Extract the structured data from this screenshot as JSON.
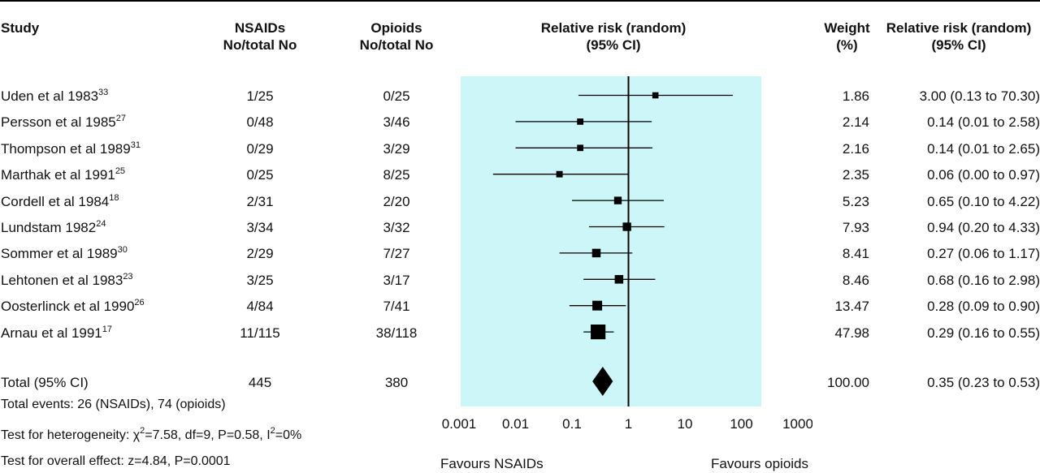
{
  "headers": {
    "study": "Study",
    "nsaid_1": "NSAIDs",
    "nsaid_2": "No/total No",
    "opioid_1": "Opioids",
    "opioid_2": "No/total No",
    "rr_1": "Relative risk (random)",
    "rr_2": "(95% CI)",
    "weight_1": "Weight",
    "weight_2": "(%)",
    "rrtext_1": "Relative risk (random)",
    "rrtext_2": "(95% CI)"
  },
  "studies": [
    {
      "name": "Uden et al 1983",
      "ref": "33",
      "nsaid": "1/25",
      "opioid": "0/25",
      "weight": "1.86",
      "rr_text": "3.00 (0.13 to 70.30)"
    },
    {
      "name": "Persson et al 1985",
      "ref": "27",
      "nsaid": "0/48",
      "opioid": "3/46",
      "weight": "2.14",
      "rr_text": "0.14 (0.01 to 2.58)"
    },
    {
      "name": "Thompson et al 1989",
      "ref": "31",
      "nsaid": "0/29",
      "opioid": "3/29",
      "weight": "2.16",
      "rr_text": "0.14 (0.01 to 2.65)"
    },
    {
      "name": "Marthak et al 1991",
      "ref": "25",
      "nsaid": "0/25",
      "opioid": "8/25",
      "weight": "2.35",
      "rr_text": "0.06 (0.00 to 0.97)"
    },
    {
      "name": "Cordell et al 1984",
      "ref": "18",
      "nsaid": "2/31",
      "opioid": "2/20",
      "weight": "5.23",
      "rr_text": "0.65 (0.10 to 4.22)"
    },
    {
      "name": "Lundstam 1982",
      "ref": "24",
      "nsaid": "3/34",
      "opioid": "3/32",
      "weight": "7.93",
      "rr_text": "0.94 (0.20 to 4.33)"
    },
    {
      "name": "Sommer et al 1989",
      "ref": "30",
      "nsaid": "2/29",
      "opioid": "7/27",
      "weight": "8.41",
      "rr_text": "0.27 (0.06 to 1.17)"
    },
    {
      "name": "Lehtonen et al 1983",
      "ref": "23",
      "nsaid": "3/25",
      "opioid": "3/17",
      "weight": "8.46",
      "rr_text": "0.68 (0.16 to 2.98)"
    },
    {
      "name": "Oosterlinck et al 1990",
      "ref": "26",
      "nsaid": "4/84",
      "opioid": "7/41",
      "weight": "13.47",
      "rr_text": "0.28 (0.09 to 0.90)"
    },
    {
      "name": "Arnau et al 1991",
      "ref": "17",
      "nsaid": "11/115",
      "opioid": "38/118",
      "weight": "47.98",
      "rr_text": "0.29 (0.16 to 0.55)"
    }
  ],
  "total": {
    "name": "Total (95% CI)",
    "nsaid": "445",
    "opioid": "380",
    "weight": "100.00",
    "rr_text": "0.35 (0.23 to 0.53)"
  },
  "notes": {
    "events": "Total events: 26 (NSAIDs), 74 (opioids)",
    "heterogeneity_pre": "Test for heterogeneity: ",
    "chi": "χ",
    "chi_sup": "2",
    "heterogeneity_mid": "=7.58, df=9, P=0.58, I",
    "i_sup": "2",
    "heterogeneity_post": "=0%",
    "overall": "Test for overall effect: z=4.84, P=0.0001"
  },
  "axis": {
    "favours_left": "Favours NSAIDs",
    "favours_right": "Favours opioids"
  },
  "colors": {
    "plot_bg": "#ccf6f8",
    "marker": "#000000"
  },
  "chart_data": {
    "type": "forest",
    "xscale": "log",
    "xlim": [
      0.001,
      1000
    ],
    "xticks": [
      0.001,
      0.01,
      0.1,
      1,
      10,
      100,
      1000
    ],
    "xtick_labels": [
      "0.001",
      "0.01",
      "0.1",
      "1",
      "10",
      "100",
      "1000"
    ],
    "reference_line": 1,
    "series": [
      {
        "study": "Uden et al 1983",
        "rr": 3.0,
        "lo": 0.13,
        "hi": 70.3,
        "weight": 1.86
      },
      {
        "study": "Persson et al 1985",
        "rr": 0.14,
        "lo": 0.01,
        "hi": 2.58,
        "weight": 2.14
      },
      {
        "study": "Thompson et al 1989",
        "rr": 0.14,
        "lo": 0.01,
        "hi": 2.65,
        "weight": 2.16
      },
      {
        "study": "Marthak et al 1991",
        "rr": 0.06,
        "lo": 0.004,
        "hi": 0.97,
        "weight": 2.35
      },
      {
        "study": "Cordell et al 1984",
        "rr": 0.65,
        "lo": 0.1,
        "hi": 4.22,
        "weight": 5.23
      },
      {
        "study": "Lundstam 1982",
        "rr": 0.94,
        "lo": 0.2,
        "hi": 4.33,
        "weight": 7.93
      },
      {
        "study": "Sommer et al 1989",
        "rr": 0.27,
        "lo": 0.06,
        "hi": 1.17,
        "weight": 8.41
      },
      {
        "study": "Lehtonen et al 1983",
        "rr": 0.68,
        "lo": 0.16,
        "hi": 2.98,
        "weight": 8.46
      },
      {
        "study": "Oosterlinck et al 1990",
        "rr": 0.28,
        "lo": 0.09,
        "hi": 0.9,
        "weight": 13.47
      },
      {
        "study": "Arnau et al 1991",
        "rr": 0.29,
        "lo": 0.16,
        "hi": 0.55,
        "weight": 47.98
      }
    ],
    "pooled": {
      "rr": 0.35,
      "lo": 0.23,
      "hi": 0.53
    },
    "xlabel_left": "Favours NSAIDs",
    "xlabel_right": "Favours opioids"
  }
}
